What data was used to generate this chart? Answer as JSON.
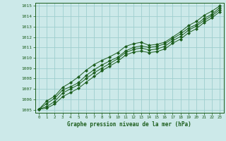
{
  "title": "Graphe pression niveau de la mer (hPa)",
  "xlim": [
    -0.5,
    23.5
  ],
  "ylim": [
    1004.7,
    1015.3
  ],
  "xticks": [
    0,
    1,
    2,
    3,
    4,
    5,
    6,
    7,
    8,
    9,
    10,
    11,
    12,
    13,
    14,
    15,
    16,
    17,
    18,
    19,
    20,
    21,
    22,
    23
  ],
  "yticks": [
    1005,
    1006,
    1007,
    1008,
    1009,
    1010,
    1011,
    1012,
    1013,
    1014,
    1015
  ],
  "background_color": "#cce9e9",
  "grid_color": "#9ecece",
  "line_color": "#1a5c1a",
  "title_color": "#1a5c1a",
  "series": [
    [
      1005.05,
      1005.85,
      1006.3,
      1007.15,
      1007.6,
      1008.15,
      1008.8,
      1009.35,
      1009.75,
      1010.1,
      1010.5,
      1011.1,
      1011.35,
      1011.5,
      1011.2,
      1011.3,
      1011.5,
      1012.0,
      1012.5,
      1013.1,
      1013.5,
      1014.1,
      1014.5,
      1015.0
    ],
    [
      1005.05,
      1005.6,
      1006.1,
      1006.9,
      1007.2,
      1007.6,
      1008.3,
      1008.85,
      1009.3,
      1009.7,
      1010.05,
      1010.65,
      1011.0,
      1011.15,
      1011.0,
      1011.1,
      1011.35,
      1011.85,
      1012.3,
      1012.85,
      1013.2,
      1013.8,
      1014.2,
      1014.85
    ],
    [
      1005.05,
      1005.3,
      1005.8,
      1006.6,
      1007.0,
      1007.4,
      1008.0,
      1008.55,
      1009.0,
      1009.45,
      1009.9,
      1010.5,
      1010.8,
      1010.95,
      1010.75,
      1010.85,
      1011.1,
      1011.65,
      1012.05,
      1012.65,
      1013.05,
      1013.6,
      1014.05,
      1014.65
    ],
    [
      1005.05,
      1005.15,
      1005.55,
      1006.25,
      1006.65,
      1007.05,
      1007.65,
      1008.2,
      1008.75,
      1009.2,
      1009.65,
      1010.25,
      1010.55,
      1010.65,
      1010.5,
      1010.6,
      1010.85,
      1011.4,
      1011.8,
      1012.4,
      1012.8,
      1013.4,
      1013.85,
      1014.45
    ]
  ]
}
